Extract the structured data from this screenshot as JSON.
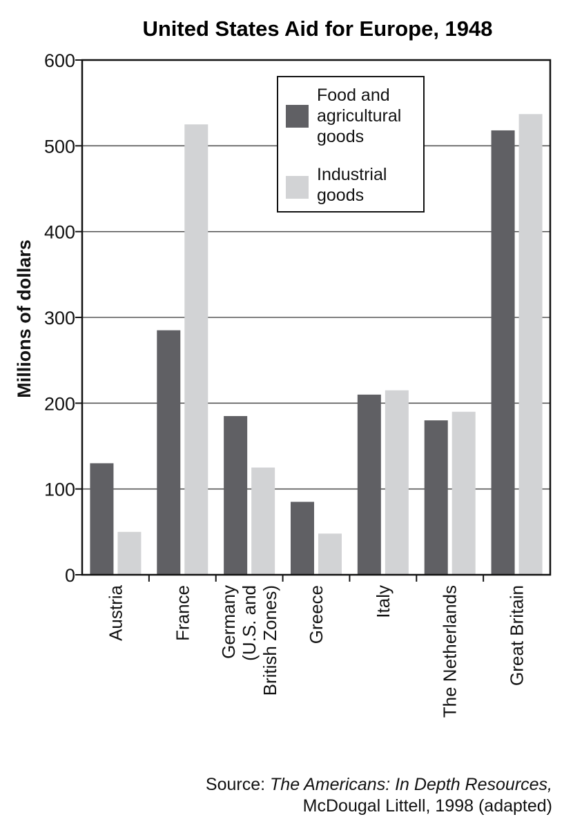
{
  "chart_data": {
    "type": "bar",
    "title": "United States Aid for Europe, 1948",
    "ylabel": "Millions of dollars",
    "xlabel": "",
    "ylim": [
      0,
      600
    ],
    "yticks": [
      0,
      100,
      200,
      300,
      400,
      500,
      600
    ],
    "grid": true,
    "legend_position": "top-center",
    "categories": [
      [
        "Austria"
      ],
      [
        "France"
      ],
      [
        "Germany",
        "(U.S. and",
        "British Zones)"
      ],
      [
        "Greece"
      ],
      [
        "Italy"
      ],
      [
        "The Netherlands"
      ],
      [
        "Great Britain"
      ]
    ],
    "series": [
      {
        "name": "Food and agricultural goods",
        "legend_lines": [
          "Food and",
          "agricultural",
          "goods"
        ],
        "color": "#606064",
        "values": [
          130,
          285,
          185,
          85,
          210,
          180,
          518
        ]
      },
      {
        "name": "Industrial goods",
        "legend_lines": [
          "Industrial",
          "goods"
        ],
        "color": "#d2d3d5",
        "values": [
          50,
          525,
          125,
          48,
          215,
          190,
          537
        ]
      }
    ]
  },
  "source": {
    "prefix": "Source: ",
    "work": "The Americans: In Depth Resources,",
    "line2": "McDougal Littell, 1998 (adapted)"
  }
}
